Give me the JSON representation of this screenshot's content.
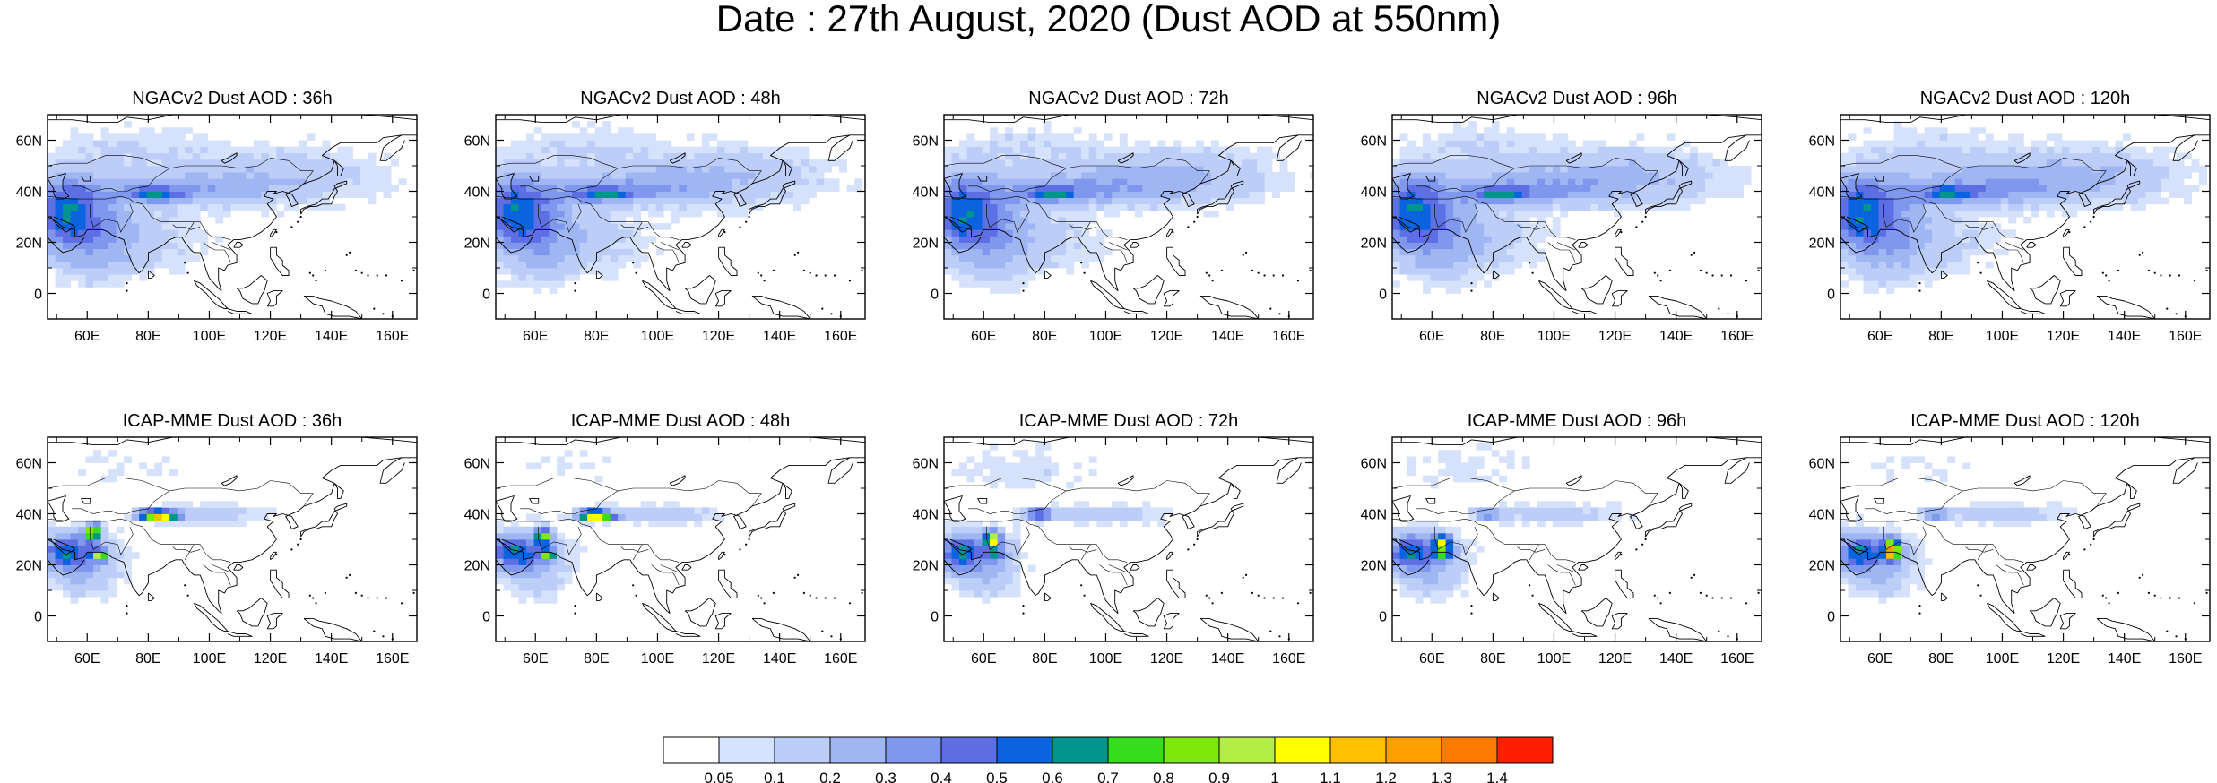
{
  "title": "Date : 27th August, 2020 (Dust AOD at 550nm)",
  "map_axes": {
    "lon_range": [
      47,
      168
    ],
    "lat_range": [
      -10,
      70
    ],
    "lon_ticks": [
      60,
      80,
      100,
      120,
      140,
      160
    ],
    "lon_tick_labels": [
      "60E",
      "80E",
      "100E",
      "120E",
      "140E",
      "160E"
    ],
    "lat_ticks": [
      0,
      20,
      40,
      60
    ],
    "lat_tick_labels": [
      "0",
      "20N",
      "40N",
      "60N"
    ]
  },
  "panels": [
    {
      "title": "NGACv2 Dust AOD : 36h",
      "model": "NGACv2",
      "lead": "36h"
    },
    {
      "title": "NGACv2 Dust AOD : 48h",
      "model": "NGACv2",
      "lead": "48h"
    },
    {
      "title": "NGACv2 Dust AOD : 72h",
      "model": "NGACv2",
      "lead": "72h"
    },
    {
      "title": "NGACv2 Dust AOD : 96h",
      "model": "NGACv2",
      "lead": "96h"
    },
    {
      "title": "NGACv2 Dust AOD : 120h",
      "model": "NGACv2",
      "lead": "120h"
    },
    {
      "title": "ICAP-MME Dust AOD : 36h",
      "model": "ICAP-MME",
      "lead": "36h"
    },
    {
      "title": "ICAP-MME Dust AOD : 48h",
      "model": "ICAP-MME",
      "lead": "48h"
    },
    {
      "title": "ICAP-MME Dust AOD : 72h",
      "model": "ICAP-MME",
      "lead": "72h"
    },
    {
      "title": "ICAP-MME Dust AOD : 96h",
      "model": "ICAP-MME",
      "lead": "96h"
    },
    {
      "title": "ICAP-MME Dust AOD : 120h",
      "model": "ICAP-MME",
      "lead": "120h"
    }
  ],
  "colorbar": {
    "labels": [
      "0.05",
      "0.1",
      "0.2",
      "0.3",
      "0.4",
      "0.5",
      "0.6",
      "0.7",
      "0.8",
      "0.9",
      "1",
      "1.1",
      "1.2",
      "1.3",
      "1.4"
    ],
    "colors": [
      "#ffffff",
      "#d6e2fb",
      "#bccdf7",
      "#9fb6f3",
      "#7f98ee",
      "#5d6fe3",
      "#0b63e0",
      "#00958c",
      "#36dd1a",
      "#7ee80a",
      "#b4ee44",
      "#ffff00",
      "#ffc000",
      "#ffa000",
      "#ff7a00",
      "#ff1e00"
    ]
  }
}
